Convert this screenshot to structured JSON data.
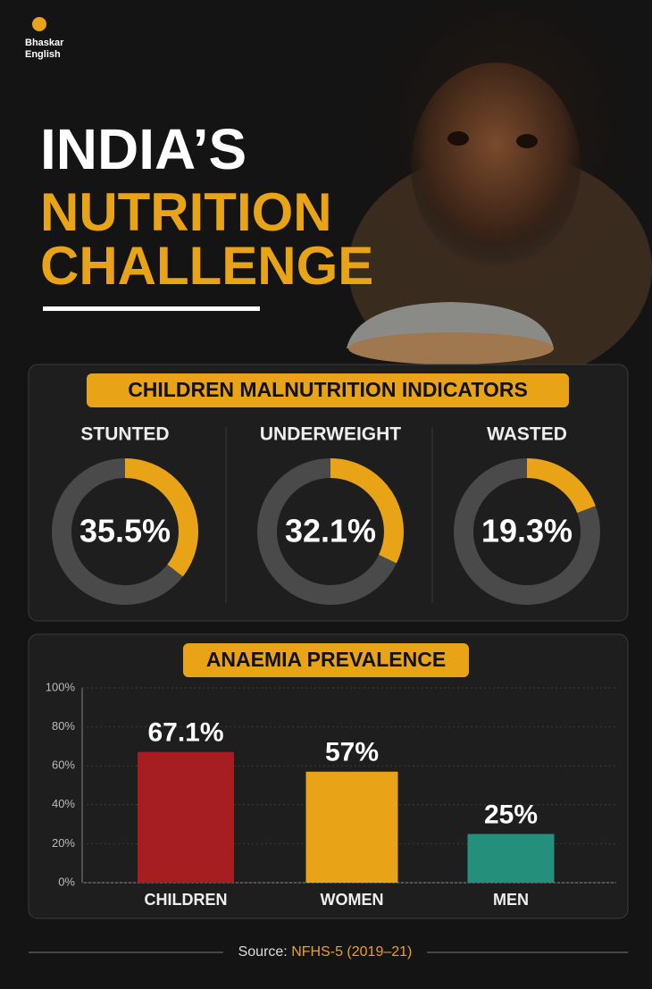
{
  "brand": [
    "Bhaskar",
    "English"
  ],
  "title_lines": [
    "INDIA’S",
    "NUTRITION",
    "CHALLENGE"
  ],
  "chart_data": [
    {
      "type": "donut",
      "title": "CHILDREN MALNUTRITION INDICATORS",
      "categories": [
        "STUNTED",
        "UNDERWEIGHT",
        "WASTED"
      ],
      "values": [
        35.5,
        32.1,
        19.3
      ],
      "value_labels": [
        "35.5%",
        "32.1%",
        "19.3%"
      ],
      "ylim": [
        0,
        100
      ],
      "color": "#e8a317",
      "track_color": "#4a4a4a"
    },
    {
      "type": "bar",
      "title": "ANAEMIA PREVALENCE",
      "categories": [
        "CHILDREN",
        "WOMEN",
        "MEN"
      ],
      "values": [
        67.1,
        57,
        25
      ],
      "value_labels": [
        "67.1%",
        "57%",
        "25%"
      ],
      "colors": [
        "#a61e22",
        "#e8a317",
        "#24907c"
      ],
      "ylim": [
        0,
        100
      ],
      "yticks": [
        {
          "value": 0,
          "label": "0%"
        },
        {
          "value": 20,
          "label": "20%"
        },
        {
          "value": 40,
          "label": "40%"
        },
        {
          "value": 60,
          "label": "60%"
        },
        {
          "value": 80,
          "label": "80%"
        },
        {
          "value": 100,
          "label": "100%"
        }
      ],
      "grid": true
    }
  ],
  "source": {
    "label": "Source:",
    "value": "NFHS-5 (2019–21)"
  }
}
